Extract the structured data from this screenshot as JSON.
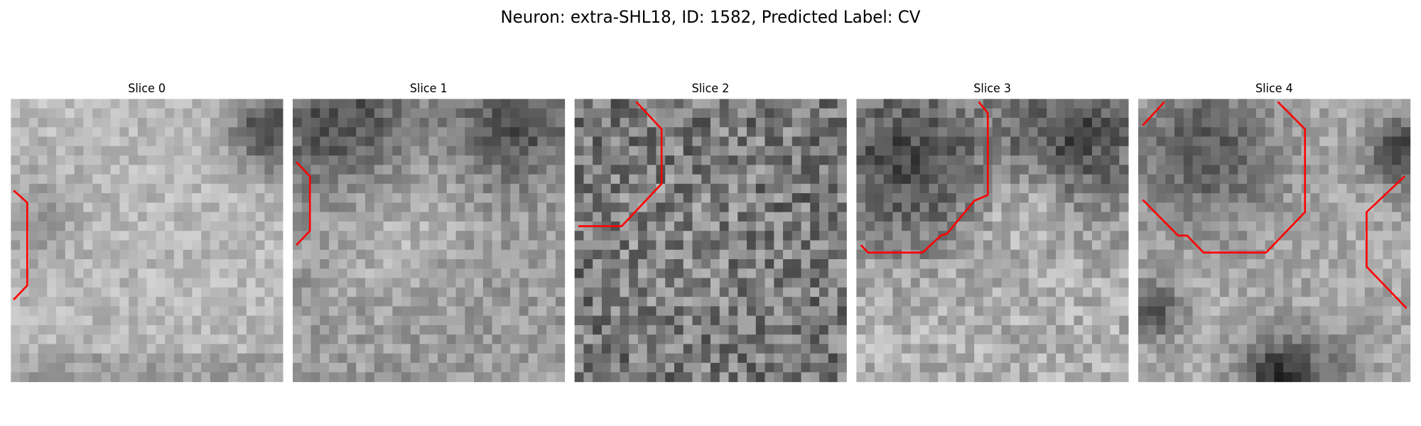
{
  "title": "Neuron: extra-SHL18, ID: 1582, Predicted Label: CV",
  "panels": [
    {
      "title": "Slice 0"
    },
    {
      "title": "Slice 1"
    },
    {
      "title": "Slice 2"
    },
    {
      "title": "Slice 3"
    },
    {
      "title": "Slice 4"
    }
  ]
}
